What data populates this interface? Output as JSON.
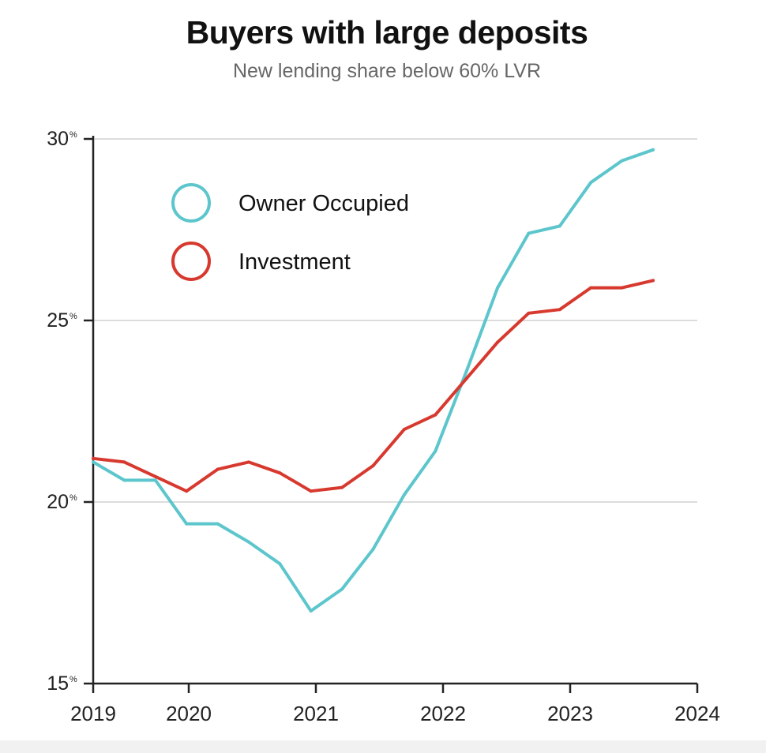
{
  "chart_data": {
    "type": "line",
    "title": "Buyers with large deposits",
    "subtitle": "New lending share below 60% LVR",
    "xlabel": "",
    "ylabel": "",
    "x": [
      2019.25,
      2019.5,
      2019.75,
      2020,
      2020.25,
      2020.5,
      2020.75,
      2021,
      2021.25,
      2021.5,
      2021.75,
      2022,
      2022.25,
      2022.5,
      2022.75,
      2023,
      2023.25,
      2023.5,
      2023.75
    ],
    "series": [
      {
        "name": "Owner Occupied",
        "color": "#5cc6cc",
        "values": [
          21.1,
          20.6,
          20.6,
          19.4,
          19.4,
          18.9,
          18.3,
          17.0,
          17.6,
          18.7,
          20.2,
          21.4,
          23.6,
          25.9,
          27.4,
          27.6,
          28.8,
          29.4,
          29.7
        ]
      },
      {
        "name": "Investment",
        "color": "#d7392f",
        "values": [
          21.2,
          21.1,
          20.7,
          20.3,
          20.9,
          21.1,
          20.8,
          20.3,
          20.4,
          21.0,
          22.0,
          22.4,
          23.4,
          24.4,
          25.2,
          25.3,
          25.9,
          25.9,
          26.1
        ]
      }
    ],
    "xlim": [
      2019.25,
      2024
    ],
    "ylim": [
      15,
      30
    ],
    "xticks": [
      "2019",
      "2020",
      "2021",
      "2022",
      "2023",
      "2024"
    ],
    "yticks": [
      {
        "value": 15,
        "label": "15",
        "unit": "%"
      },
      {
        "value": 20,
        "label": "20",
        "unit": "%"
      },
      {
        "value": 25,
        "label": "25",
        "unit": "%"
      },
      {
        "value": 30,
        "label": "30",
        "unit": "%"
      }
    ],
    "grid": "horizontal",
    "legend": "top-left"
  }
}
